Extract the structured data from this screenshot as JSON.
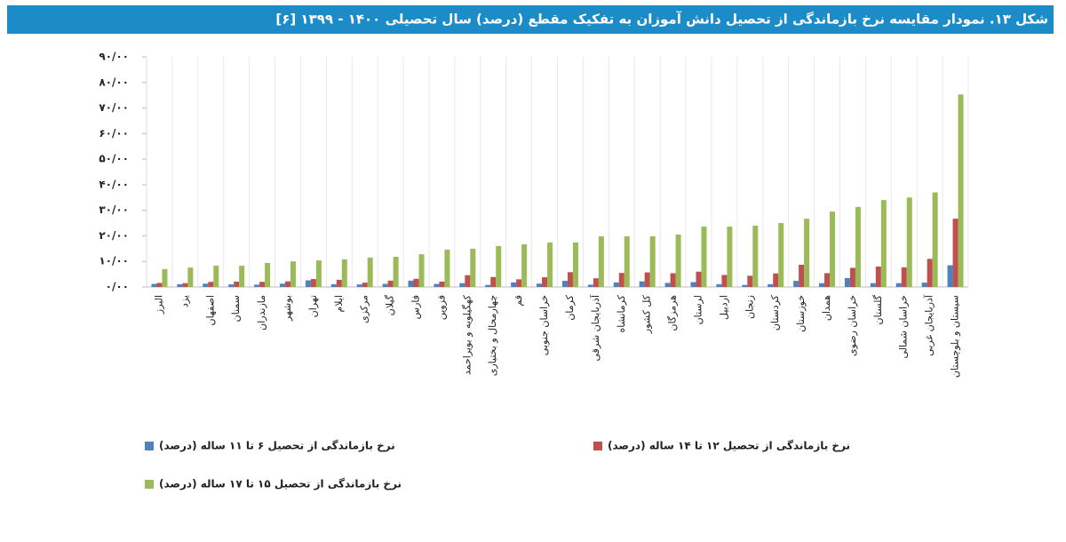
{
  "chart_data": {
    "type": "bar",
    "title": "شکل ۱۳. نمودار مقایسه نرخ بازماندگی از تحصیل دانش آموزان به تفکیک مقطع (درصد) سال تحصیلی ۱۴۰۰ - ۱۳۹۹ [۶]",
    "categories": [
      "البرز",
      "یزد",
      "اصفهان",
      "سمنان",
      "مازندران",
      "بوشهر",
      "تهران",
      "ایلام",
      "مرکزی",
      "گیلان",
      "فارس",
      "قزوین",
      "کهگیلویه و بویراحمد",
      "چهارمحال و بختیاری",
      "قم",
      "خراسان جنوبی",
      "کرمان",
      "آذربایجان شرقی",
      "کرمانشاه",
      "کل کشور",
      "هرمزگان",
      "لرستان",
      "اردبیل",
      "زنجان",
      "کردستان",
      "خوزستان",
      "همدان",
      "خراسان رضوی",
      "گلستان",
      "خراسان شمالی",
      "آذربایجان غربی",
      "سیستان و بلوچستان"
    ],
    "series": [
      {
        "name": "نرخ بازماندگی از تحصیل ۶ تا ۱۱ ساله (درصد)",
        "color": "#4f81bd",
        "values": [
          1.2,
          1.1,
          1.3,
          1,
          0.9,
          1.3,
          2.6,
          1.1,
          1,
          1.2,
          2.5,
          1.2,
          1.5,
          0.8,
          1.8,
          1.3,
          2.4,
          0.9,
          1.8,
          2.2,
          1.6,
          1.9,
          1.1,
          0.8,
          1.1,
          2.4,
          1.5,
          3.5,
          1.5,
          1.5,
          1.7,
          8.5
        ]
      },
      {
        "name": "نرخ بازماندگی از تحصیل ۱۲ تا ۱۴ ساله (درصد)",
        "color": "#c0504d",
        "values": [
          1.6,
          1.5,
          2,
          2.1,
          2,
          2.2,
          3.1,
          2.8,
          1.7,
          2.5,
          3.2,
          2.1,
          4.6,
          3.9,
          3,
          3.8,
          5.8,
          3.4,
          5.5,
          5.7,
          5.4,
          6,
          4.7,
          4.4,
          5.3,
          8.7,
          5.4,
          7.5,
          8,
          7.7,
          11,
          26.7
        ]
      },
      {
        "name": "نرخ بازماندگی از تحصیل ۱۵ تا ۱۷ ساله (درصد)",
        "color": "#9bbb59",
        "values": [
          7,
          7.6,
          8.3,
          8.3,
          9.4,
          10,
          10.4,
          10.8,
          11.5,
          11.8,
          12.8,
          14.6,
          15,
          16,
          16.7,
          17.4,
          17.4,
          19.8,
          19.8,
          19.8,
          20.5,
          23.6,
          23.6,
          24,
          25,
          26.7,
          29.5,
          31.3,
          34,
          35,
          37,
          75.3
        ]
      }
    ],
    "ylim": [
      0,
      90
    ],
    "yticks": [
      {
        "value": 0,
        "label": "۰/۰۰"
      },
      {
        "value": 10,
        "label": "۱۰/۰۰"
      },
      {
        "value": 20,
        "label": "۲۰/۰۰"
      },
      {
        "value": 30,
        "label": "۳۰/۰۰"
      },
      {
        "value": 40,
        "label": "۴۰/۰۰"
      },
      {
        "value": 50,
        "label": "۵۰/۰۰"
      },
      {
        "value": 60,
        "label": "۶۰/۰۰"
      },
      {
        "value": 70,
        "label": "۷۰/۰۰"
      },
      {
        "value": 80,
        "label": "۸۰/۰۰"
      },
      {
        "value": 90,
        "label": "۹۰/۰۰"
      }
    ],
    "grid": true
  }
}
